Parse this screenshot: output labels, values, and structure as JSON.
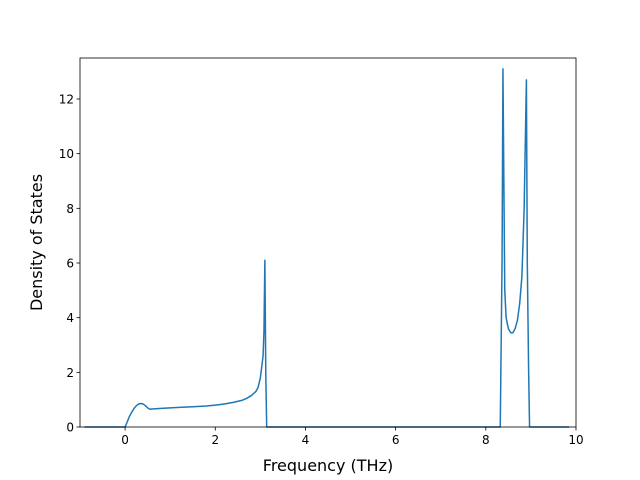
{
  "chart_data": {
    "type": "line",
    "title": "",
    "xlabel": "Frequency (THz)",
    "ylabel": "Density of States",
    "xlim": [
      -1.0,
      10.0
    ],
    "ylim": [
      0,
      13.5
    ],
    "xticks": [
      0,
      2,
      4,
      6,
      8,
      10
    ],
    "xtick_labels": [
      "0",
      "2",
      "4",
      "6",
      "8",
      "10"
    ],
    "yticks": [
      0,
      2,
      4,
      6,
      8,
      10,
      12
    ],
    "ytick_labels": [
      "0",
      "2",
      "4",
      "6",
      "8",
      "10",
      "12"
    ],
    "grid": false,
    "line_color": "#1f77b4",
    "series": [
      {
        "x": [
          -0.9,
          0.0,
          0.05,
          0.1,
          0.15,
          0.2,
          0.25,
          0.3,
          0.35,
          0.4,
          0.45,
          0.5,
          0.55,
          0.6,
          0.8,
          1.0,
          1.2,
          1.5,
          1.8,
          2.0,
          2.2,
          2.4,
          2.6,
          2.7,
          2.8,
          2.9,
          2.95,
          3.0,
          3.03,
          3.06,
          3.08,
          3.1,
          3.12,
          3.14,
          3.16,
          8.3,
          8.32,
          8.36,
          8.38,
          8.4,
          8.42,
          8.45,
          8.5,
          8.55,
          8.6,
          8.65,
          8.7,
          8.75,
          8.8,
          8.85,
          8.9,
          8.92,
          8.95,
          8.97,
          9.0,
          9.85
        ],
        "y": [
          0,
          0,
          0.2,
          0.4,
          0.55,
          0.68,
          0.78,
          0.84,
          0.86,
          0.84,
          0.78,
          0.7,
          0.65,
          0.66,
          0.68,
          0.7,
          0.72,
          0.74,
          0.77,
          0.8,
          0.84,
          0.9,
          0.98,
          1.05,
          1.15,
          1.3,
          1.45,
          1.8,
          2.2,
          2.6,
          3.5,
          6.1,
          2.0,
          0,
          0,
          0,
          0,
          6.0,
          13.1,
          9.0,
          5.0,
          4.0,
          3.6,
          3.45,
          3.45,
          3.6,
          3.9,
          4.5,
          5.5,
          8.0,
          12.7,
          6.0,
          2.0,
          0,
          0,
          0
        ]
      }
    ]
  }
}
